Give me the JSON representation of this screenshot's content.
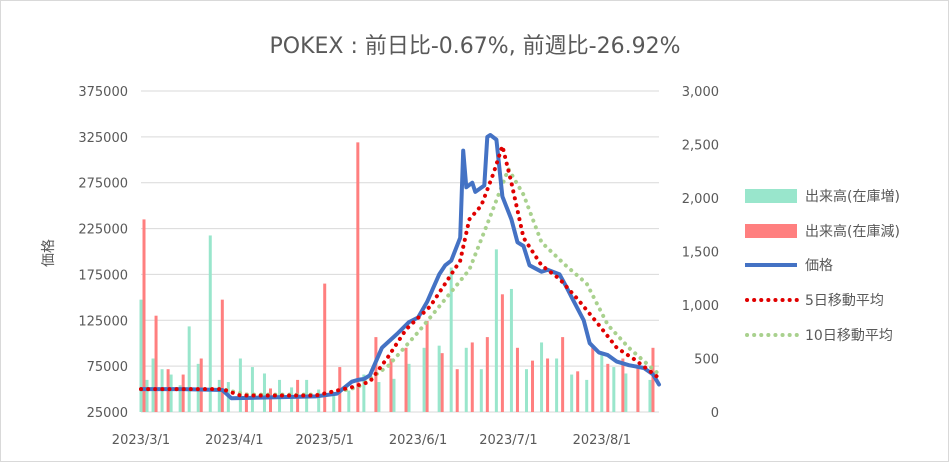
{
  "chart_data": {
    "type": "line",
    "title": "POKEX : 前日比-0.67%, 前週比-26.92%",
    "ylabel": "価格",
    "y_left": {
      "min": 25000,
      "max": 375000,
      "ticks": [
        "375000",
        "325000",
        "275000",
        "225000",
        "175000",
        "125000",
        "75000",
        "25000"
      ]
    },
    "y_right": {
      "min": 0,
      "max": 3000,
      "ticks": [
        "3,000",
        "2,500",
        "2,000",
        "1,500",
        "1,000",
        "500",
        "0"
      ]
    },
    "x_ticks": [
      "2023/3/1",
      "2023/4/1",
      "2023/5/1",
      "2023/6/1",
      "2023/7/1",
      "2023/8/1"
    ],
    "grid": true,
    "legend_position": "right",
    "legend": [
      {
        "label": "出来高(在庫増)",
        "color": "#99e6cc"
      },
      {
        "label": "出来高(在庫減)",
        "color": "#ff7f7f"
      },
      {
        "label": "価格",
        "color": "#4472c4"
      },
      {
        "label": "5日移動平均",
        "color": "#e00000"
      },
      {
        "label": "10日移動平均",
        "color": "#a9d18e"
      }
    ],
    "series": [
      {
        "name": "価格",
        "axis": "left",
        "x": [
          "2023/3/1",
          "2023/3/15",
          "2023/3/28",
          "2023/3/31",
          "2023/4/15",
          "2023/4/28",
          "2023/5/5",
          "2023/5/10",
          "2023/5/12",
          "2023/5/14",
          "2023/5/16",
          "2023/5/20",
          "2023/5/25",
          "2023/5/29",
          "2023/6/1",
          "2023/6/4",
          "2023/6/6",
          "2023/6/8",
          "2023/6/10",
          "2023/6/12",
          "2023/6/15",
          "2023/6/16",
          "2023/6/17",
          "2023/6/19",
          "2023/6/20",
          "2023/6/23",
          "2023/6/24",
          "2023/6/25",
          "2023/6/27",
          "2023/6/29",
          "2023/7/2",
          "2023/7/4",
          "2023/7/6",
          "2023/7/8",
          "2023/7/12",
          "2023/7/14",
          "2023/7/18",
          "2023/7/20",
          "2023/7/22",
          "2023/7/26",
          "2023/7/28",
          "2023/7/31",
          "2023/8/3",
          "2023/8/6",
          "2023/8/10",
          "2023/8/15",
          "2023/8/18",
          "2023/8/20"
        ],
        "values": [
          50000,
          50000,
          49000,
          40000,
          41000,
          42000,
          45000,
          58000,
          60000,
          61000,
          65000,
          95000,
          110000,
          123000,
          128000,
          145000,
          160000,
          175000,
          185000,
          190000,
          215000,
          310000,
          270000,
          275000,
          265000,
          272000,
          325000,
          327000,
          322000,
          260000,
          235000,
          210000,
          206000,
          185000,
          178000,
          180000,
          175000,
          163000,
          150000,
          125000,
          100000,
          90000,
          87000,
          80000,
          76000,
          73000,
          66000,
          55000
        ]
      },
      {
        "name": "5日移動平均",
        "axis": "left",
        "x": [
          "2023/3/1",
          "2023/3/28",
          "2023/4/3",
          "2023/4/28",
          "2023/5/10",
          "2023/5/16",
          "2023/5/22",
          "2023/5/28",
          "2023/6/5",
          "2023/6/10",
          "2023/6/15",
          "2023/6/18",
          "2023/6/22",
          "2023/6/26",
          "2023/6/29",
          "2023/7/2",
          "2023/7/6",
          "2023/7/12",
          "2023/7/18",
          "2023/7/24",
          "2023/7/31",
          "2023/8/6",
          "2023/8/12",
          "2023/8/20"
        ],
        "values": [
          50000,
          50000,
          43000,
          43000,
          52000,
          58000,
          85000,
          115000,
          140000,
          165000,
          190000,
          235000,
          250000,
          285000,
          315000,
          275000,
          215000,
          185000,
          170000,
          148000,
          120000,
          95000,
          82000,
          62000
        ]
      },
      {
        "name": "10日移動平均",
        "axis": "left",
        "x": [
          "2023/3/1",
          "2023/3/28",
          "2023/4/5",
          "2023/5/1",
          "2023/5/12",
          "2023/5/22",
          "2023/6/1",
          "2023/6/10",
          "2023/6/18",
          "2023/6/24",
          "2023/7/1",
          "2023/7/6",
          "2023/7/12",
          "2023/7/20",
          "2023/7/27",
          "2023/8/3",
          "2023/8/10",
          "2023/8/20"
        ],
        "values": [
          50000,
          50000,
          44000,
          44000,
          52000,
          75000,
          112000,
          148000,
          180000,
          230000,
          290000,
          262000,
          210000,
          185000,
          165000,
          120000,
          95000,
          66000
        ]
      }
    ],
    "volume_up": {
      "axis": "right",
      "x": [
        "2023/3/1",
        "2023/3/3",
        "2023/3/5",
        "2023/3/8",
        "2023/3/11",
        "2023/3/14",
        "2023/3/17",
        "2023/3/20",
        "2023/3/24",
        "2023/3/27",
        "2023/3/30",
        "2023/4/3",
        "2023/4/7",
        "2023/4/11",
        "2023/4/16",
        "2023/4/20",
        "2023/4/25",
        "2023/4/29",
        "2023/5/4",
        "2023/5/9",
        "2023/5/14",
        "2023/5/19",
        "2023/5/24",
        "2023/5/29",
        "2023/6/3",
        "2023/6/8",
        "2023/6/12",
        "2023/6/17",
        "2023/6/22",
        "2023/6/27",
        "2023/7/2",
        "2023/7/7",
        "2023/7/12",
        "2023/7/17",
        "2023/7/22",
        "2023/7/27",
        "2023/8/1",
        "2023/8/5",
        "2023/8/9",
        "2023/8/13",
        "2023/8/17"
      ],
      "values": [
        1050,
        300,
        500,
        400,
        350,
        250,
        800,
        450,
        1650,
        300,
        280,
        500,
        420,
        360,
        300,
        230,
        300,
        210,
        180,
        200,
        350,
        280,
        310,
        450,
        600,
        620,
        1350,
        600,
        400,
        1520,
        1150,
        400,
        650,
        500,
        350,
        300,
        540,
        420,
        360,
        400,
        300
      ]
    },
    "volume_down": {
      "axis": "right",
      "x": [
        "2023/3/2",
        "2023/3/6",
        "2023/3/10",
        "2023/3/15",
        "2023/3/21",
        "2023/3/28",
        "2023/4/5",
        "2023/4/13",
        "2023/4/22",
        "2023/5/1",
        "2023/5/6",
        "2023/5/12",
        "2023/5/18",
        "2023/5/23",
        "2023/5/28",
        "2023/6/4",
        "2023/6/9",
        "2023/6/14",
        "2023/6/19",
        "2023/6/24",
        "2023/6/29",
        "2023/7/4",
        "2023/7/9",
        "2023/7/14",
        "2023/7/19",
        "2023/7/24",
        "2023/7/29",
        "2023/8/3",
        "2023/8/8",
        "2023/8/13",
        "2023/8/18"
      ],
      "values": [
        1800,
        900,
        400,
        350,
        500,
        1050,
        180,
        220,
        300,
        1200,
        420,
        2520,
        700,
        500,
        600,
        850,
        550,
        400,
        650,
        700,
        1100,
        600,
        480,
        500,
        700,
        380,
        600,
        450,
        500,
        420,
        600
      ]
    }
  }
}
